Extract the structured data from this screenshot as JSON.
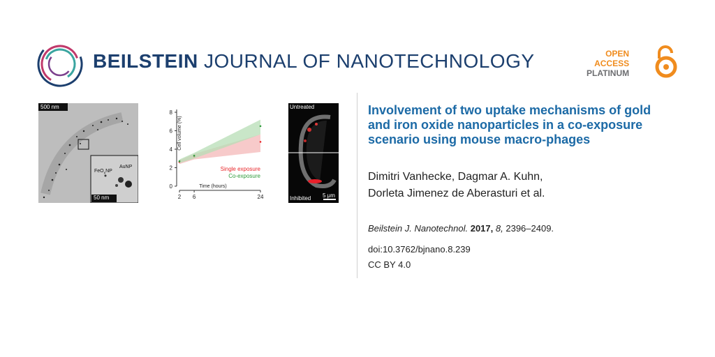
{
  "header": {
    "journal_bold": "BEILSTEIN",
    "journal_light": "JOURNAL OF NANOTECHNOLOGY",
    "oa_line1": "OPEN",
    "oa_line2": "ACCESS",
    "oa_line3": "PLATINUM"
  },
  "figure": {
    "tem": {
      "scale_top": "500 nm",
      "label_feo": "FeO",
      "label_feo_sub": "x",
      "label_feo_suffix": "NP",
      "label_au": "AuNP",
      "scale_inset": "50 nm"
    },
    "fluor": {
      "label_top": "Untreated",
      "label_bottom": "Inhibited",
      "scale": "5 μm"
    }
  },
  "chart_data": {
    "type": "line",
    "ylabel": "Cell volume (%)",
    "xlabel": "Time (hours)",
    "x_ticks": [
      "2",
      "6",
      "24"
    ],
    "y_ticks": [
      "0",
      "2",
      "4",
      "6",
      "8"
    ],
    "ylim": [
      0,
      8
    ],
    "x": [
      2,
      6,
      24
    ],
    "series": [
      {
        "name": "Single exposure",
        "color": "#e8262a",
        "band": "#f4b8b8",
        "values": [
          2.6,
          3.2,
          4.8
        ],
        "lower": [
          2.4,
          2.9,
          3.7
        ],
        "upper": [
          2.8,
          3.5,
          5.6
        ]
      },
      {
        "name": "Co-exposure",
        "color": "#2e9a3a",
        "band": "#b7deb5",
        "values": [
          2.7,
          3.3,
          6.5
        ],
        "lower": [
          2.5,
          3.0,
          5.6
        ],
        "upper": [
          2.9,
          3.6,
          7.2
        ]
      }
    ]
  },
  "article": {
    "title": "Involvement of two uptake mechanisms of gold and iron oxide nanoparticles in a co-exposure scenario using mouse macro-phages",
    "authors_line1": "Dimitri Vanhecke, Dagmar A. Kuhn,",
    "authors_line2": "Dorleta Jimenez de Aberasturi et al.",
    "cit_journal": "Beilstein J. Nanotechnol.",
    "cit_year": "2017,",
    "cit_volume": "8,",
    "cit_pages": "2396–2409.",
    "doi": "doi:10.3762/bjnano.8.239",
    "license": "CC BY 4.0"
  },
  "colors": {
    "brand_blue": "#1c3f6e",
    "title_blue": "#1c6aa6",
    "oa_orange": "#f08c1e"
  }
}
